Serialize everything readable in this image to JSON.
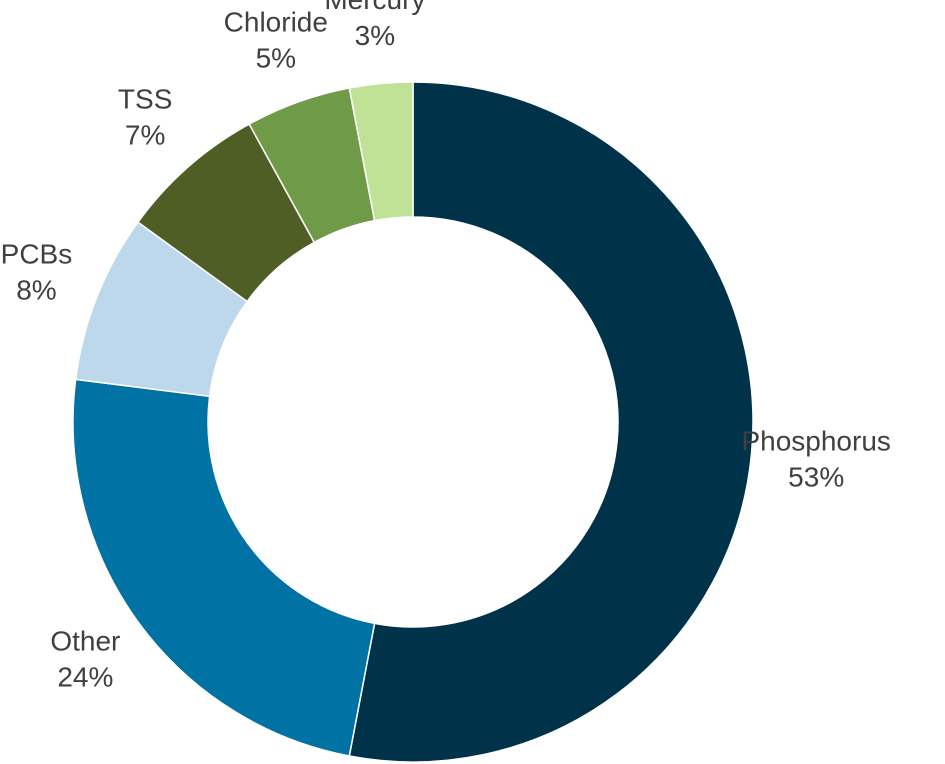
{
  "chart_data": {
    "type": "pie",
    "categories": [
      "Phosphorus",
      "Other",
      "PCBs",
      "TSS",
      "Chloride",
      "Mercury"
    ],
    "values": [
      53,
      24,
      8,
      7,
      5,
      3
    ],
    "value_labels": [
      "53%",
      "24%",
      "8%",
      "7%",
      "5%",
      "3%"
    ],
    "colors": [
      "#003349",
      "#0072a3",
      "#bcd8ea",
      "#4f5e24",
      "#6f9a47",
      "#bfe296"
    ]
  }
}
